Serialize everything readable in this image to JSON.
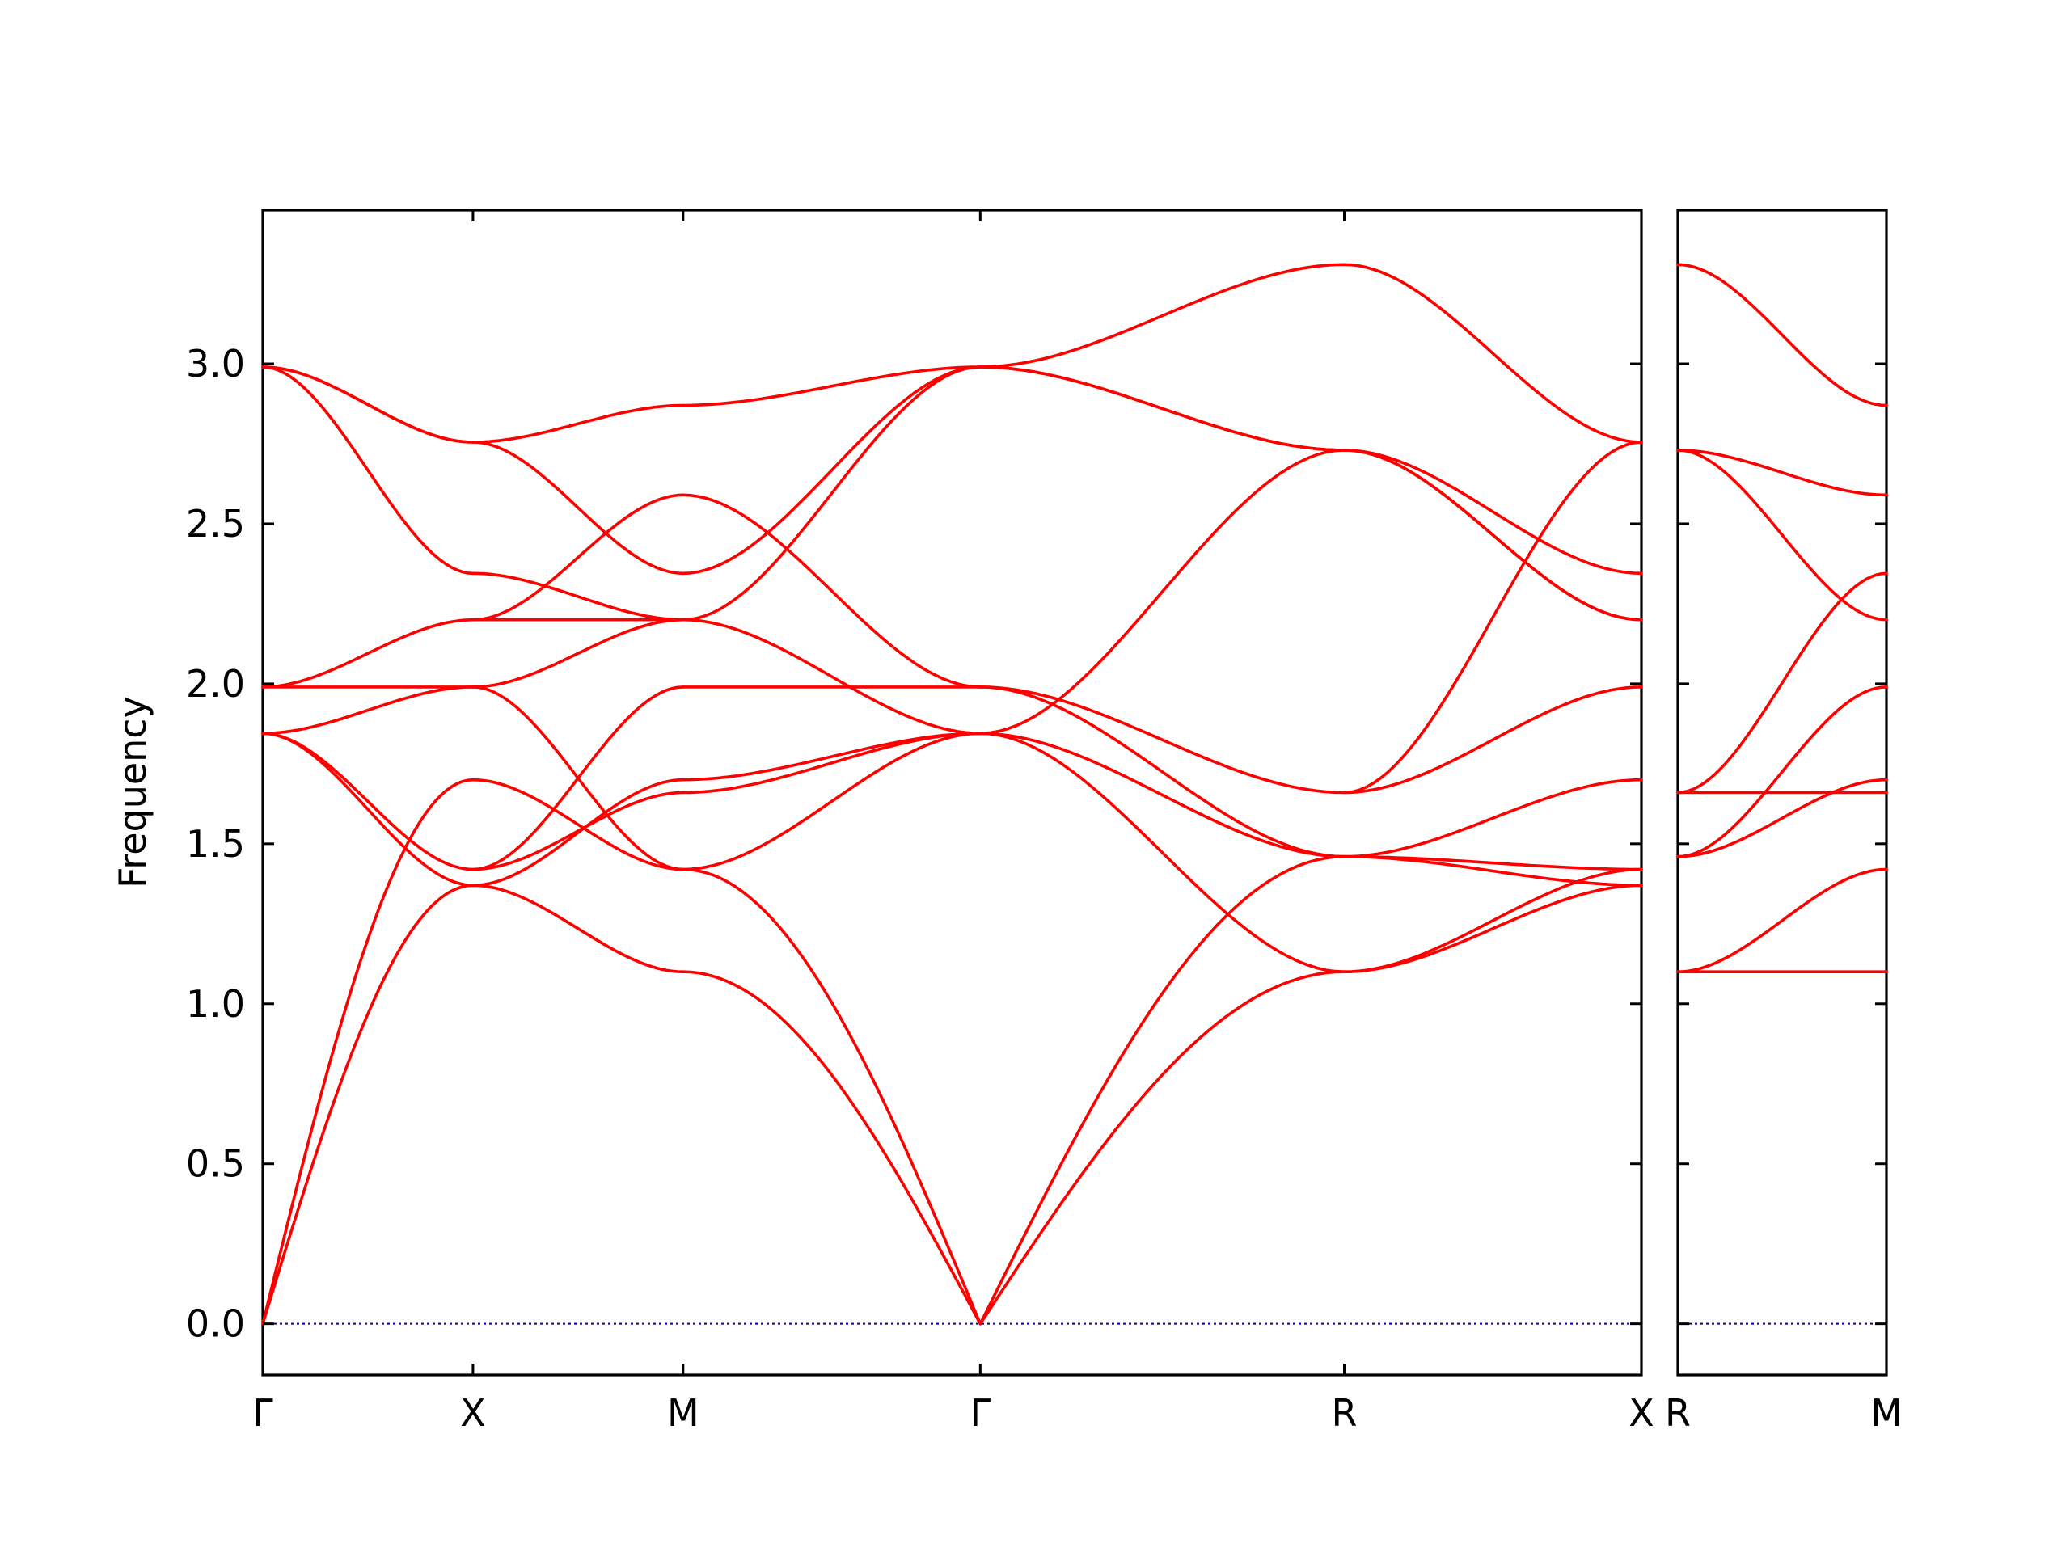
{
  "chart_data": {
    "type": "line",
    "ylabel": "Frequency",
    "xlabel": "",
    "ylim": [
      -0.16,
      3.48
    ],
    "yticks": [
      0.0,
      0.5,
      1.0,
      1.5,
      2.0,
      2.5,
      3.0
    ],
    "ytick_labels": [
      "0.0",
      "0.5",
      "1.0",
      "1.5",
      "2.0",
      "2.5",
      "3.0"
    ],
    "band_color": "#ff0000",
    "zero_line_color": "#0000aa",
    "grid": false,
    "segments": [
      {
        "panel": 0,
        "from": "Γ",
        "to": "X",
        "x0": 0.0,
        "x1": 0.5,
        "bands": [
          [
            0.0,
            1.37
          ],
          [
            0.0,
            1.7
          ],
          [
            1.845,
            1.42
          ],
          [
            1.845,
            1.37
          ],
          [
            1.845,
            1.99
          ],
          [
            1.99,
            1.99
          ],
          [
            1.99,
            2.2
          ],
          [
            2.99,
            2.345
          ],
          [
            2.99,
            2.755
          ],
          [
            2.99,
            2.755
          ]
        ]
      },
      {
        "panel": 0,
        "from": "X",
        "to": "M",
        "x0": 0.5,
        "x1": 1.0,
        "bands": [
          [
            1.37,
            1.1
          ],
          [
            1.37,
            1.7
          ],
          [
            1.42,
            1.99
          ],
          [
            1.42,
            1.66
          ],
          [
            1.7,
            1.42
          ],
          [
            1.99,
            1.42
          ],
          [
            1.99,
            2.2
          ],
          [
            2.2,
            2.2
          ],
          [
            2.345,
            2.2
          ],
          [
            2.2,
            2.59
          ],
          [
            2.755,
            2.345
          ],
          [
            2.755,
            2.87
          ]
        ]
      },
      {
        "panel": 0,
        "from": "M",
        "to": "Γ",
        "x0": 1.0,
        "x1": 1.707,
        "bands": [
          [
            1.1,
            0.0
          ],
          [
            1.42,
            0.0
          ],
          [
            1.7,
            1.845
          ],
          [
            1.66,
            1.845
          ],
          [
            1.42,
            1.845
          ],
          [
            2.2,
            1.845
          ],
          [
            1.99,
            1.99
          ],
          [
            2.2,
            2.99
          ],
          [
            2.59,
            1.99
          ],
          [
            2.345,
            2.99
          ],
          [
            2.87,
            2.99
          ]
        ]
      },
      {
        "panel": 0,
        "from": "Γ",
        "to": "R",
        "x0": 1.707,
        "x1": 2.573,
        "bands": [
          [
            0.0,
            1.1
          ],
          [
            0.0,
            1.46
          ],
          [
            1.845,
            1.1
          ],
          [
            1.845,
            1.46
          ],
          [
            1.845,
            2.73
          ],
          [
            1.99,
            1.66
          ],
          [
            1.99,
            1.46
          ],
          [
            2.99,
            2.73
          ],
          [
            2.99,
            2.73
          ],
          [
            2.99,
            3.31
          ]
        ]
      },
      {
        "panel": 0,
        "from": "R",
        "to": "X",
        "x0": 2.573,
        "x1": 3.28,
        "bands": [
          [
            1.1,
            1.37
          ],
          [
            1.1,
            1.42
          ],
          [
            1.46,
            1.37
          ],
          [
            1.46,
            1.42
          ],
          [
            1.46,
            1.7
          ],
          [
            1.66,
            1.99
          ],
          [
            1.66,
            2.755
          ],
          [
            2.73,
            2.345
          ],
          [
            2.73,
            2.2
          ],
          [
            2.73,
            2.2
          ],
          [
            3.31,
            2.755
          ]
        ]
      },
      {
        "panel": 1,
        "from": "R",
        "to": "M",
        "x0": 0.0,
        "x1": 0.5,
        "bands": [
          [
            1.1,
            1.1
          ],
          [
            1.1,
            1.42
          ],
          [
            1.46,
            1.7
          ],
          [
            1.46,
            1.99
          ],
          [
            1.66,
            1.66
          ],
          [
            1.66,
            2.345
          ],
          [
            2.73,
            2.2
          ],
          [
            2.73,
            2.59
          ],
          [
            3.31,
            2.87
          ]
        ]
      }
    ],
    "panels": [
      {
        "xlim": [
          0.0,
          3.28
        ],
        "xtick_values": [
          0.0,
          0.5,
          1.0,
          1.707,
          2.573,
          3.28
        ],
        "xtick_labels": [
          "Γ",
          "X",
          "M",
          "Γ",
          "R",
          "X"
        ]
      },
      {
        "xlim": [
          0.0,
          0.5
        ],
        "xtick_values": [
          0.0,
          0.5
        ],
        "xtick_labels": [
          "R",
          "M"
        ]
      }
    ]
  }
}
